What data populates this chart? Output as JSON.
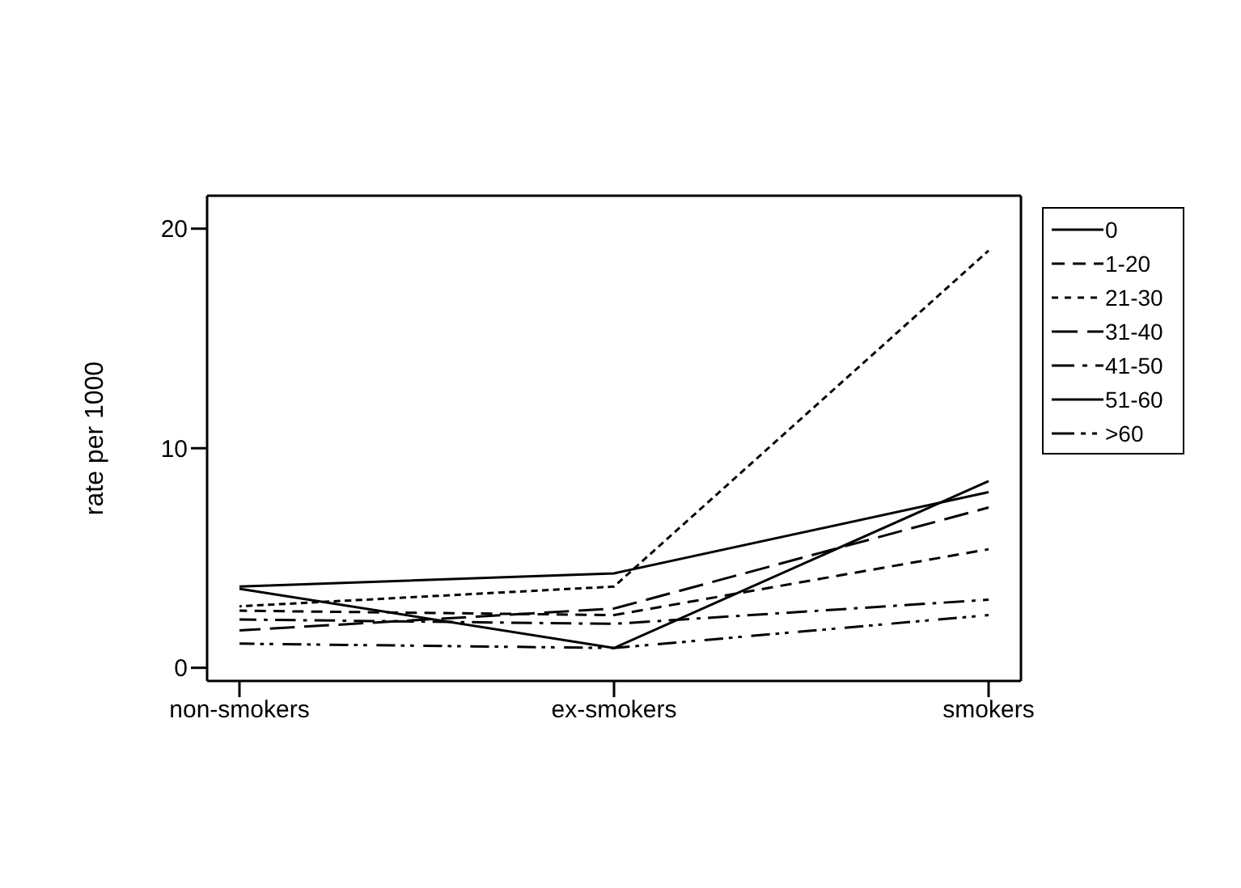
{
  "chart_data": {
    "type": "line",
    "ylabel": "rate per 1000",
    "categories": [
      "non-smokers",
      "ex-smokers",
      "smokers"
    ],
    "ylim": [
      -0.6,
      21.5
    ],
    "yticks": [
      0,
      10,
      20
    ],
    "grid": false,
    "legend": "right",
    "marker": "none",
    "series": [
      {
        "name": "0",
        "color": "#000000",
        "line_style": "solid",
        "values": [
          3.7,
          4.3,
          8.0
        ]
      },
      {
        "name": "1-20",
        "color": "#000000",
        "line_style": "dashed",
        "values": [
          2.6,
          2.4,
          5.4
        ]
      },
      {
        "name": "21-30",
        "color": "#000000",
        "line_style": "dotted",
        "values": [
          2.8,
          3.7,
          19.0
        ]
      },
      {
        "name": "31-40",
        "color": "#000000",
        "line_style": "longdash",
        "values": [
          1.7,
          2.7,
          7.3
        ]
      },
      {
        "name": "41-50",
        "color": "#000000",
        "line_style": "dashdot",
        "values": [
          2.2,
          2.0,
          3.1
        ]
      },
      {
        "name": "51-60",
        "color": "#000000",
        "line_style": "solid",
        "values": [
          3.6,
          0.9,
          8.5
        ]
      },
      {
        "name": ">60",
        "color": "#000000",
        "line_style": "dashdotdot",
        "values": [
          1.1,
          0.9,
          2.4
        ]
      }
    ]
  }
}
